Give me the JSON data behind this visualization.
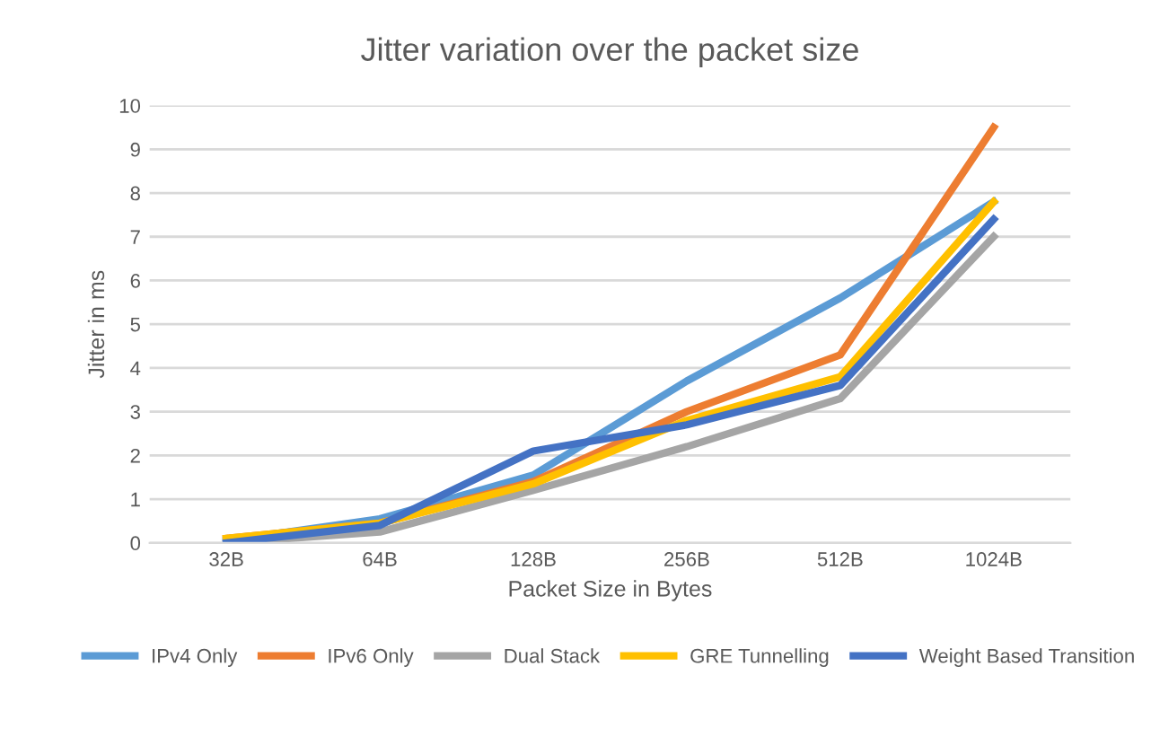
{
  "chart_data": {
    "type": "line",
    "title": "Jitter variation over the packet size",
    "xlabel": "Packet Size in Bytes",
    "ylabel": "Jitter in ms",
    "categories": [
      "32B",
      "64B",
      "128B",
      "256B",
      "512B",
      "1024B"
    ],
    "ylim": [
      0,
      10
    ],
    "yticks": [
      0,
      1,
      2,
      3,
      4,
      5,
      6,
      7,
      8,
      9,
      10
    ],
    "grid": "y",
    "legend": "bottom",
    "marker": "none",
    "line_style": "solid",
    "series": [
      {
        "name": "IPv4 Only",
        "color": "#5b9bd5",
        "values": [
          0.05,
          0.55,
          1.55,
          3.7,
          5.6,
          7.8
        ]
      },
      {
        "name": "IPv6 Only",
        "color": "#ed7d31",
        "values": [
          0.1,
          0.45,
          1.4,
          3.0,
          4.3,
          9.5
        ]
      },
      {
        "name": "Dual Stack",
        "color": "#a5a5a5",
        "values": [
          0.0,
          0.25,
          1.2,
          2.2,
          3.3,
          7.0
        ]
      },
      {
        "name": "GRE Tunnelling",
        "color": "#ffc000",
        "values": [
          0.1,
          0.45,
          1.35,
          2.8,
          3.8,
          7.8
        ]
      },
      {
        "name": "Weight Based Transition",
        "color": "#4472c4",
        "values": [
          0.0,
          0.4,
          2.1,
          2.7,
          3.6,
          7.4
        ]
      }
    ]
  }
}
